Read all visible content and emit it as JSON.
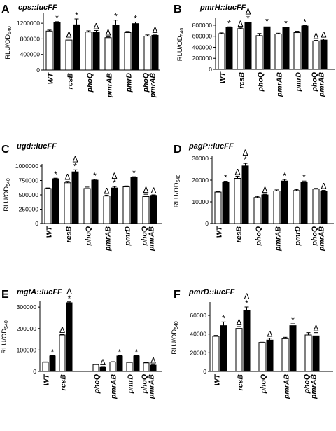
{
  "chart_data": [
    {
      "type": "bar",
      "panel": "A",
      "title": "cps::lucFF",
      "ylabel": "RLU/OD",
      "ylabel_sub": "540",
      "ylim": [
        0,
        1400000
      ],
      "yticks": [
        0,
        400000,
        800000,
        1200000
      ],
      "ytick_labels": [
        "0",
        "400000",
        "800000",
        "1200000"
      ],
      "categories": [
        "WT",
        "rcsB",
        "phoQ",
        "pmrAB",
        "pmrD",
        "phoQ pmrAB"
      ],
      "series": [
        {
          "fill": "open",
          "values": [
            1000000,
            770000,
            975000,
            830000,
            960000,
            870000
          ],
          "errors": [
            25000,
            30000,
            30000,
            20000,
            30000,
            30000
          ],
          "marks": [
            "",
            "Δ",
            "",
            "Δ",
            "",
            ""
          ]
        },
        {
          "fill": "filled",
          "values": [
            1220000,
            1160000,
            975000,
            1150000,
            1190000,
            890000
          ],
          "errors": [
            20000,
            150000,
            40000,
            130000,
            40000,
            25000
          ],
          "marks": [
            "*",
            "*",
            "Δ",
            "*",
            "*",
            "Δ"
          ]
        }
      ]
    },
    {
      "type": "bar",
      "panel": "B",
      "title": "pmrH::lucFF",
      "ylabel": "RLU/OD",
      "ylabel_sub": "540",
      "ylim": [
        0,
        900000
      ],
      "yticks": [
        0,
        200000,
        400000,
        600000,
        800000
      ],
      "ytick_labels": [
        "0",
        "200000",
        "400000",
        "600000",
        "800000"
      ],
      "categories": [
        "WT",
        "rcsB",
        "phoQ",
        "pmrAB",
        "pmrD",
        "phoQ pmrAB"
      ],
      "series": [
        {
          "fill": "open",
          "values": [
            645000,
            735000,
            610000,
            640000,
            665000,
            515000
          ],
          "errors": [
            15000,
            15000,
            40000,
            15000,
            25000,
            10000
          ],
          "marks": [
            "",
            "Δ",
            "",
            "",
            "",
            "Δ"
          ]
        },
        {
          "fill": "filled",
          "values": [
            760000,
            845000,
            770000,
            755000,
            785000,
            530000
          ],
          "errors": [
            10000,
            10000,
            35000,
            10000,
            10000,
            20000
          ],
          "marks": [
            "*",
            "*Δ",
            "*",
            "*",
            "*",
            "Δ"
          ]
        }
      ]
    },
    {
      "type": "bar",
      "panel": "C",
      "title": "ugd::lucFF",
      "ylabel": "RLU/OD",
      "ylabel_sub": "540",
      "ylim": [
        0,
        1000000
      ],
      "yticks": [
        0,
        250000,
        500000,
        750000,
        1000000
      ],
      "ytick_labels": [
        "0",
        "250000",
        "500000",
        "750000",
        "1000000"
      ],
      "categories": [
        "WT",
        "rcsB",
        "phoQ",
        "pmrAB",
        "pmrD",
        "phoQ pmrAB"
      ],
      "series": [
        {
          "fill": "open",
          "values": [
            610000,
            710000,
            610000,
            480000,
            640000,
            470000
          ],
          "errors": [
            10000,
            25000,
            25000,
            15000,
            15000,
            40000
          ],
          "marks": [
            "",
            "Δ",
            "",
            "Δ",
            "",
            "Δ"
          ]
        },
        {
          "fill": "filled",
          "values": [
            780000,
            900000,
            755000,
            620000,
            805000,
            490000
          ],
          "errors": [
            10000,
            35000,
            15000,
            25000,
            10000,
            10000
          ],
          "marks": [
            "*",
            "*Δ",
            "*",
            "*Δ",
            "*",
            "Δ"
          ]
        }
      ]
    },
    {
      "type": "bar",
      "panel": "D",
      "title": "pagP::lucFF",
      "ylabel": "RLU/OD",
      "ylabel_sub": "540",
      "ylim": [
        0,
        30000
      ],
      "yticks": [
        0,
        10000,
        20000,
        30000
      ],
      "ytick_labels": [
        "0",
        "10000",
        "20000",
        "30000"
      ],
      "categories": [
        "WT",
        "rcsB",
        "phoQ",
        "pmrAB",
        "pmrD",
        "phoQ pmrAB"
      ],
      "series": [
        {
          "fill": "open",
          "values": [
            14500,
            20800,
            12000,
            15000,
            15200,
            15900
          ],
          "errors": [
            300,
            1000,
            500,
            500,
            500,
            300
          ],
          "marks": [
            "",
            "Δ",
            "",
            "",
            "",
            ""
          ]
        },
        {
          "fill": "filled",
          "values": [
            19200,
            26500,
            13200,
            19600,
            19000,
            14700
          ],
          "errors": [
            300,
            1200,
            300,
            700,
            600,
            600
          ],
          "marks": [
            "*",
            "*Δ",
            "Δ",
            "*",
            "*",
            "Δ"
          ]
        }
      ]
    },
    {
      "type": "bar",
      "panel": "E",
      "title": "mgtA::lucFF",
      "ylabel": "RLU/OD",
      "ylabel_sub": "540",
      "ylim": [
        0,
        320000
      ],
      "yticks": [
        0,
        100000,
        200000,
        300000
      ],
      "ytick_labels": [
        "0",
        "100000",
        "200000",
        "300000"
      ],
      "categories": [
        "WT",
        "rcsB",
        "",
        "phoQ",
        "pmrAB",
        "pmrD",
        "phoQ pmrAB"
      ],
      "series": [
        {
          "fill": "open",
          "values": [
            43000,
            170000,
            0,
            32000,
            44000,
            42000,
            40000
          ],
          "errors": [
            1500,
            3000,
            0,
            1000,
            1500,
            1500,
            1500
          ],
          "marks": [
            "",
            "Δ",
            "",
            "",
            "",
            "",
            ""
          ]
        },
        {
          "fill": "filled",
          "values": [
            72000,
            320000,
            0,
            22000,
            72000,
            72000,
            29000
          ],
          "errors": [
            2000,
            4000,
            0,
            1000,
            2000,
            2000,
            1500
          ],
          "marks": [
            "*",
            "*Δ",
            "",
            "Δ",
            "*",
            "*",
            "Δ"
          ]
        }
      ]
    },
    {
      "type": "bar",
      "panel": "F",
      "title": "pmrD::lucFF",
      "ylabel": "RLU/OD",
      "ylabel_sub": "540",
      "ylim": [
        0,
        72000
      ],
      "yticks": [
        0,
        20000,
        40000,
        60000
      ],
      "ytick_labels": [
        "0",
        "20000",
        "40000",
        "60000"
      ],
      "categories": [
        "WT",
        "rcsB",
        "phoQ",
        "pmrAB",
        "phoQ pmrAB"
      ],
      "series": [
        {
          "fill": "open",
          "values": [
            37500,
            46000,
            31000,
            35000,
            39000
          ],
          "errors": [
            1000,
            2000,
            1500,
            1500,
            2500
          ],
          "marks": [
            "",
            "Δ",
            "",
            "",
            ""
          ]
        },
        {
          "fill": "filled",
          "values": [
            49000,
            65000,
            33500,
            49000,
            38000
          ],
          "errors": [
            4000,
            4000,
            2000,
            2000,
            3500
          ],
          "marks": [
            "*",
            "*Δ",
            "Δ",
            "*",
            "Δ"
          ]
        }
      ]
    }
  ]
}
